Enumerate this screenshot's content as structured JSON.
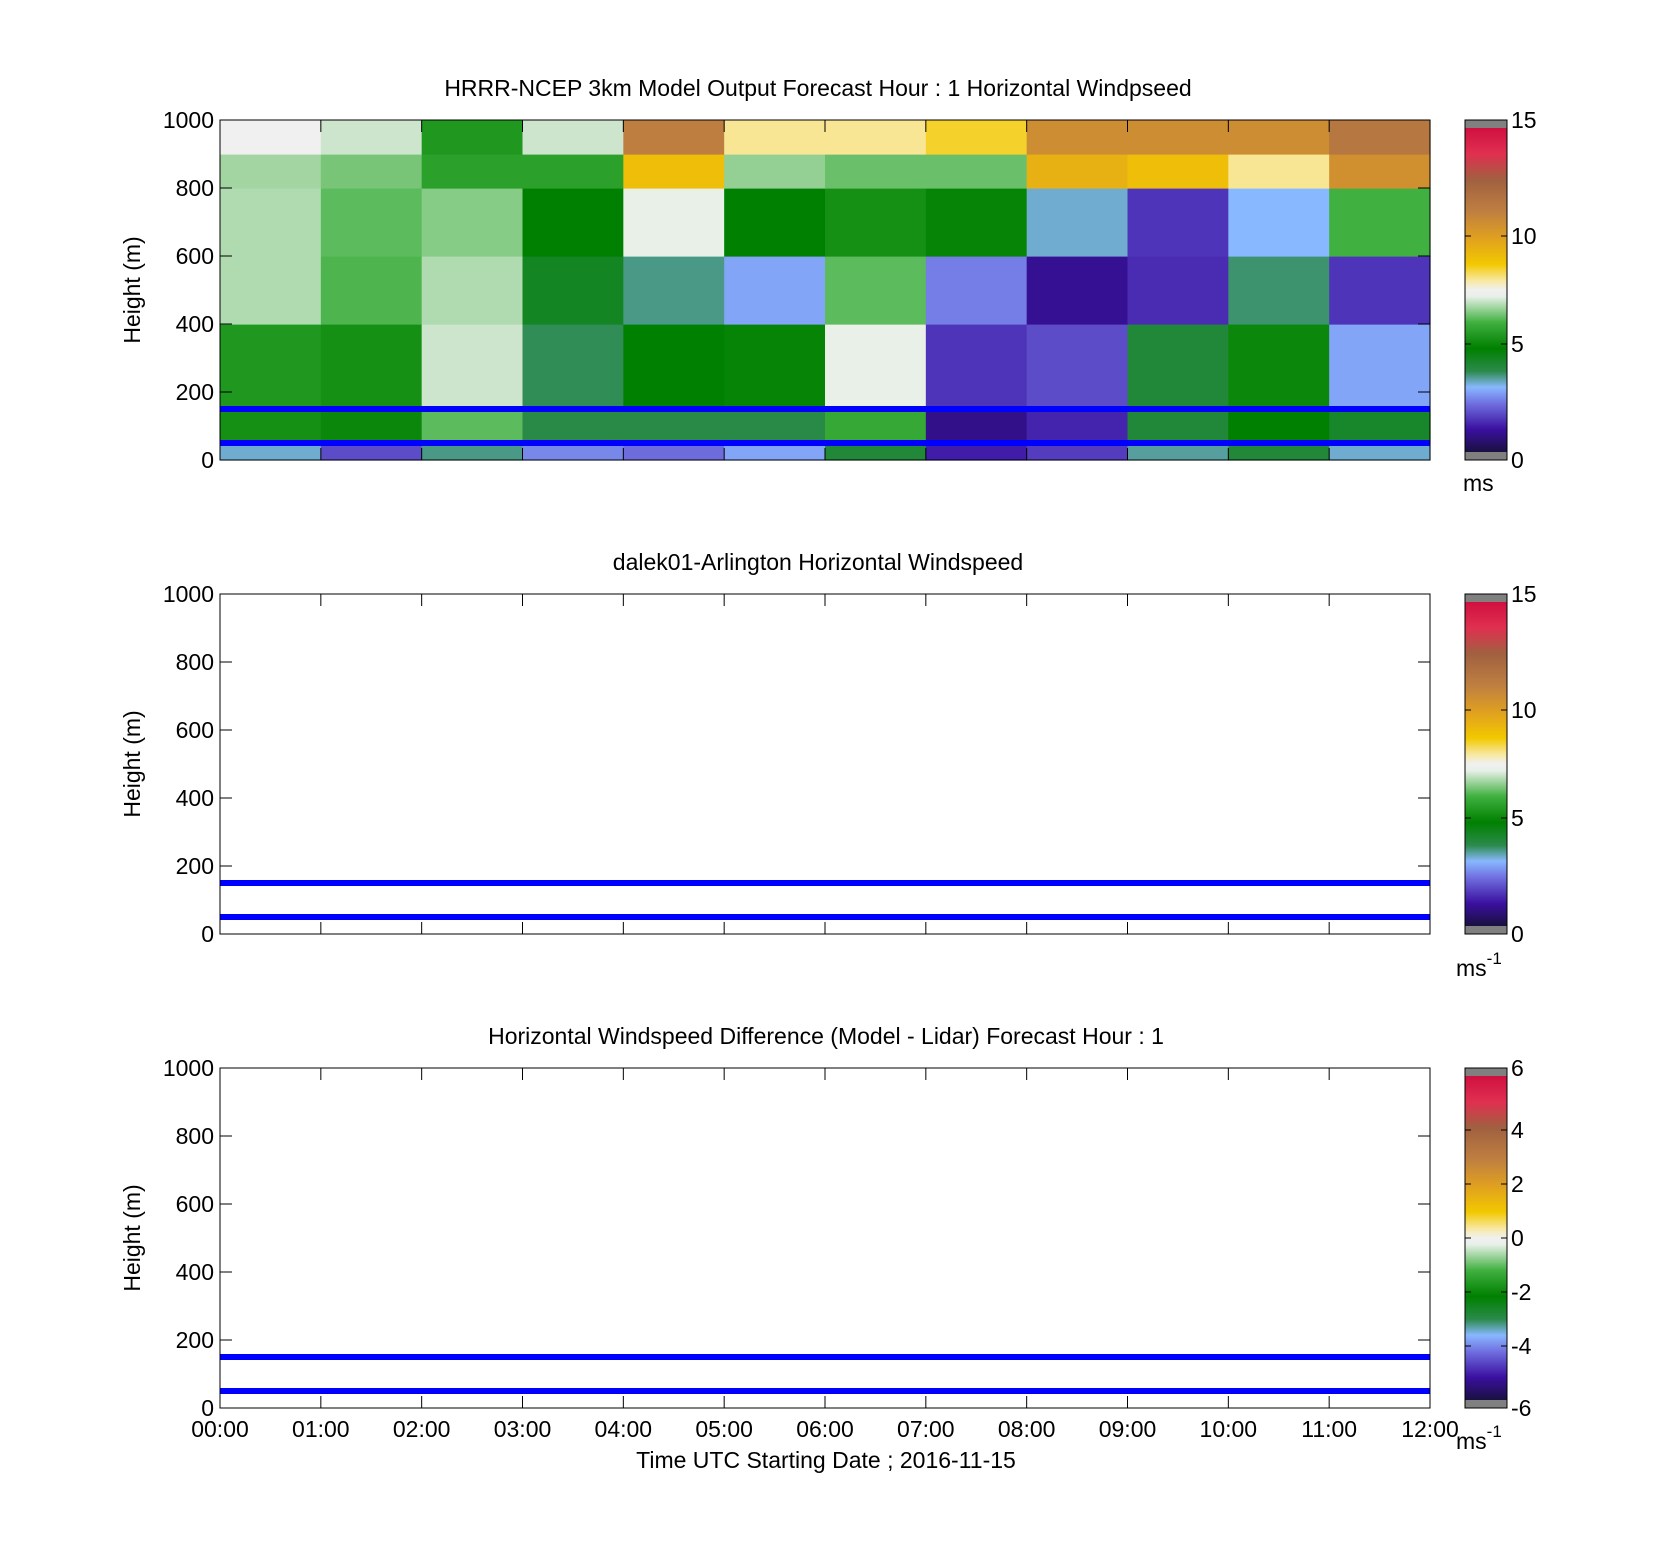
{
  "figure": {
    "xlabel": "Time UTC  Starting Date ; 2016-11-15"
  },
  "colors": {
    "reference_lines": "#0000ff",
    "colorbar_stops": [
      "#1a1040",
      "#3a10a0",
      "#7070e0",
      "#88b8ff",
      "#2a8a4a",
      "#008000",
      "#40b040",
      "#e8f0e8",
      "#f0f0f0",
      "#f8e8a0",
      "#f2c800",
      "#e0a020",
      "#c08040",
      "#a06040",
      "#e03050",
      "#d01040"
    ]
  },
  "chart_data": [
    {
      "type": "heatmap",
      "title": "HRRR-NCEP 3km Model Output   Forecast Hour : 1 Horizontal Windpseed",
      "ylabel": "Height (m)",
      "xlim": [
        "00:00",
        "12:00"
      ],
      "ylim": [
        0,
        1000
      ],
      "yticks": [
        "0",
        "200",
        "400",
        "600",
        "800",
        "1000"
      ],
      "x_ticks": [
        "00:00",
        "01:00",
        "02:00",
        "03:00",
        "04:00",
        "05:00",
        "06:00",
        "07:00",
        "08:00",
        "09:00",
        "10:00",
        "11:00",
        "12:00"
      ],
      "show_x_tick_labels": false,
      "reference_lines_y": [
        150,
        50
      ],
      "colorbar": {
        "min": 0,
        "max": 15,
        "ticks": [
          "0",
          "5",
          "10",
          "15"
        ],
        "unit": "ms"
      },
      "time_columns": [
        "00:00",
        "01:00",
        "02:00",
        "03:00",
        "04:00",
        "05:00",
        "06:00",
        "07:00",
        "08:00",
        "09:00",
        "10:00",
        "11:00"
      ],
      "height_bands": [
        [
          0,
          50
        ],
        [
          50,
          150
        ],
        [
          150,
          400
        ],
        [
          400,
          600
        ],
        [
          600,
          800
        ],
        [
          800,
          900
        ],
        [
          900,
          1000
        ]
      ],
      "windspeed_ms": [
        [
          3.2,
          1.8,
          3.5,
          2.5,
          2.2,
          2.8,
          4.0,
          1.2,
          1.6,
          3.4,
          4.0,
          3.2
        ],
        [
          5.2,
          5.0,
          6.2,
          3.8,
          3.8,
          3.8,
          5.8,
          0.8,
          1.3,
          4.0,
          4.8,
          4.2
        ],
        [
          5.4,
          5.2,
          7.0,
          3.7,
          4.8,
          4.9,
          7.2,
          1.5,
          1.8,
          4.0,
          5.0,
          2.8
        ],
        [
          6.8,
          6.1,
          6.8,
          4.3,
          3.5,
          2.8,
          6.2,
          2.4,
          0.9,
          1.4,
          3.6,
          1.5
        ],
        [
          6.8,
          6.2,
          6.5,
          4.8,
          7.2,
          4.8,
          5.2,
          4.9,
          3.2,
          1.5,
          3.0,
          6.0
        ],
        [
          6.7,
          6.4,
          5.6,
          5.6,
          9.0,
          6.6,
          6.3,
          6.3,
          9.4,
          9.0,
          8.0,
          10.5
        ],
        [
          7.5,
          7.0,
          5.4,
          7.0,
          11.2,
          8.0,
          8.0,
          8.5,
          10.6,
          10.6,
          10.6,
          11.5
        ]
      ]
    },
    {
      "type": "heatmap",
      "title": "dalek01-Arlington  Horizontal Windspeed",
      "ylabel": "Height (m)",
      "xlim": [
        "00:00",
        "12:00"
      ],
      "ylim": [
        0,
        1000
      ],
      "yticks": [
        "0",
        "200",
        "400",
        "600",
        "800",
        "1000"
      ],
      "x_ticks": [
        "00:00",
        "01:00",
        "02:00",
        "03:00",
        "04:00",
        "05:00",
        "06:00",
        "07:00",
        "08:00",
        "09:00",
        "10:00",
        "11:00",
        "12:00"
      ],
      "show_x_tick_labels": false,
      "reference_lines_y": [
        150,
        50
      ],
      "colorbar": {
        "min": 0,
        "max": 15,
        "ticks": [
          "0",
          "5",
          "10",
          "15"
        ],
        "unit": "ms",
        "unit_exponent": "-1"
      }
    },
    {
      "type": "heatmap",
      "title": "Horizontal Windspeed Difference (Model - Lidar) Forecast Hour : 1",
      "ylabel": "Height (m)",
      "xlim": [
        "00:00",
        "12:00"
      ],
      "ylim": [
        0,
        1000
      ],
      "yticks": [
        "0",
        "200",
        "400",
        "600",
        "800",
        "1000"
      ],
      "x_ticks": [
        "00:00",
        "01:00",
        "02:00",
        "03:00",
        "04:00",
        "05:00",
        "06:00",
        "07:00",
        "08:00",
        "09:00",
        "10:00",
        "11:00",
        "12:00"
      ],
      "show_x_tick_labels": true,
      "reference_lines_y": [
        150,
        50
      ],
      "colorbar": {
        "min": -6,
        "max": 6,
        "ticks": [
          "-6",
          "-4",
          "-2",
          "0",
          "2",
          "4",
          "6"
        ],
        "unit": "ms",
        "unit_exponent": "-1"
      }
    }
  ]
}
